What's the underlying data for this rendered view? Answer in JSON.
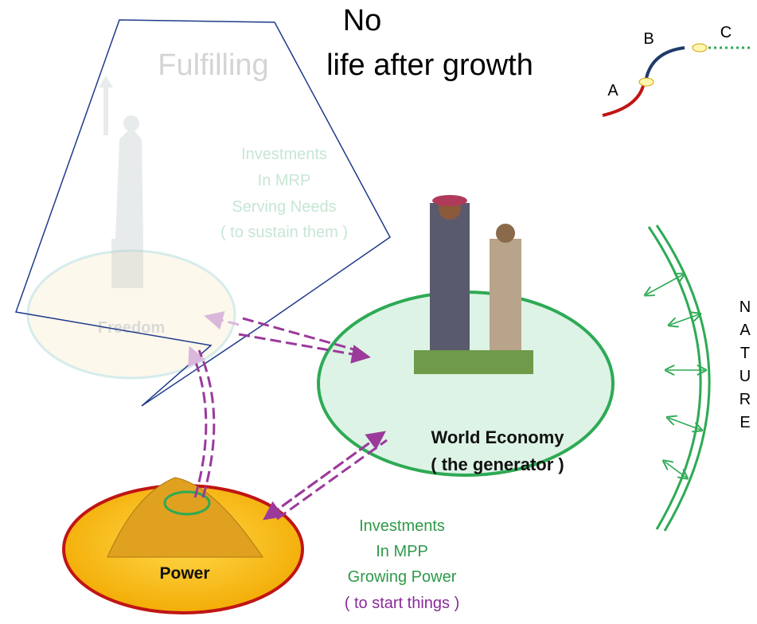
{
  "title": {
    "no": "No",
    "faded": "Fulfilling",
    "main": "life after growth"
  },
  "legend": {
    "labels": [
      "A",
      "B",
      "C"
    ]
  },
  "mrp_note": {
    "lines": [
      "Investments",
      "In MRP",
      "Serving Needs",
      "( to sustain them )"
    ]
  },
  "freedom": {
    "label": "Freedom"
  },
  "economy": {
    "lines": [
      "World Economy",
      "( the generator )"
    ]
  },
  "nature": {
    "letters": [
      "N",
      "A",
      "T",
      "U",
      "R",
      "E"
    ]
  },
  "power": {
    "label": "Power"
  },
  "mpp_note": {
    "lines": [
      "Investments",
      "In MPP",
      "Growing Power",
      "( to start things )"
    ]
  }
}
